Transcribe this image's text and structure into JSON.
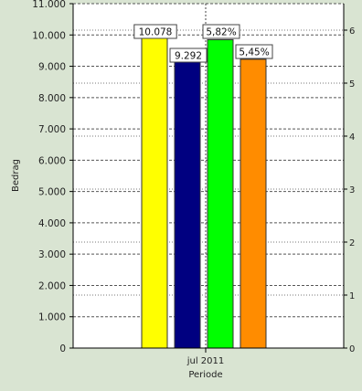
{
  "chart_data": {
    "type": "bar",
    "categories": [
      "jul 2011"
    ],
    "xlabel": "Periode",
    "ylabel": "Bedrag",
    "ylim": [
      0,
      11000
    ],
    "yticks": [
      "0",
      "1.000",
      "2.000",
      "3.000",
      "4.000",
      "5.000",
      "6.000",
      "7.000",
      "8.000",
      "9.000",
      "10.000",
      "11.000"
    ],
    "y2lim": [
      0,
      6.5
    ],
    "y2ticks": [
      "0",
      "1",
      "2",
      "3",
      "4",
      "5",
      "6"
    ],
    "grid": true,
    "bars": [
      {
        "value": 10078,
        "axis": "left",
        "color": "#ffff00",
        "label": "10.078"
      },
      {
        "value": 9292,
        "axis": "left",
        "color": "#000080",
        "label": "9.292"
      },
      {
        "value": 5.82,
        "axis": "right",
        "color": "#00ff00",
        "label": "5,82%"
      },
      {
        "value": 5.45,
        "axis": "right",
        "color": "#ff8c00",
        "label": "5,45%"
      }
    ]
  }
}
